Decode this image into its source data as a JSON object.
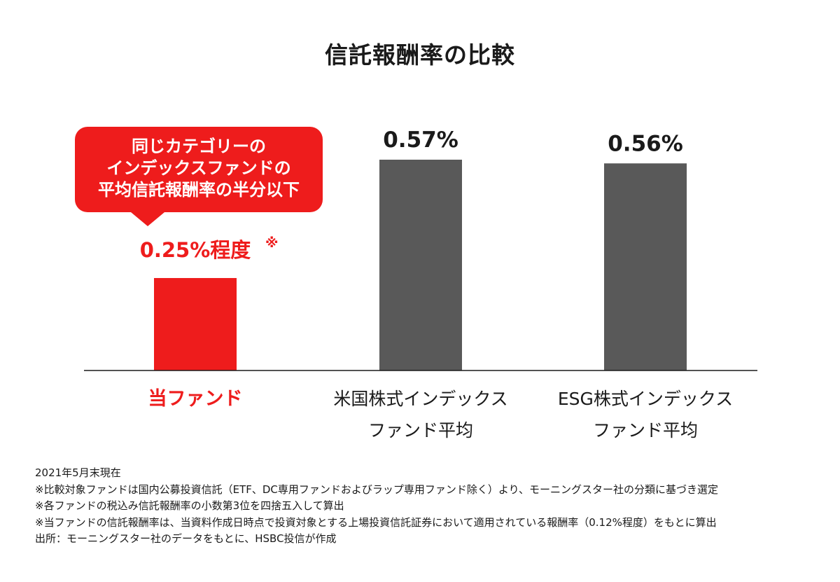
{
  "callout": {
    "lines": [
      "同じカテゴリーの",
      "インデックスファンドの",
      "平均信託報酬率の半分以下"
    ]
  },
  "colors": {
    "highlight": "#ee1c1c",
    "bar": "#595959",
    "axis": "#1a1a1a"
  },
  "chart_data": {
    "type": "bar",
    "title": "信託報酬率の比較",
    "unit": "%",
    "categories": [
      [
        "当ファンド"
      ],
      [
        "米国株式インデックス",
        "ファンド平均"
      ],
      [
        "ESG株式インデックス",
        "ファンド平均"
      ]
    ],
    "values": [
      0.25,
      0.57,
      0.56
    ],
    "value_labels": [
      "0.25%程度",
      "0.57%",
      "0.56%"
    ],
    "label_marks": [
      "※",
      "",
      ""
    ],
    "highlight_index": 0,
    "ylim": [
      0,
      0.57
    ],
    "grid": false
  },
  "footnotes": [
    "2021年5月末現在",
    "※比較対象ファンドは国内公募投資信託（ETF、DC専用ファンドおよびラップ専用ファンド除く）より、モーニングスター社の分類に基づき選定",
    "※各ファンドの税込み信託報酬率の小数第3位を四捨五入して算出",
    "※当ファンドの信託報酬率は、当資料作成日時点で投資対象とする上場投資信託証券において適用されている報酬率（0.12%程度）をもとに算出",
    "出所：モーニングスター社のデータをもとに、HSBC投信が作成"
  ]
}
